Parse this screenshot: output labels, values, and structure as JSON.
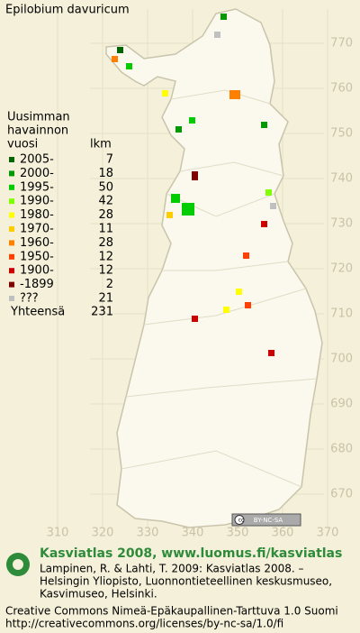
{
  "title": "Epilobium davuricum",
  "legend": {
    "header": [
      "Uusimman",
      "havainnon",
      "vuosi"
    ],
    "count_header": "lkm",
    "rows": [
      {
        "period": "2005-",
        "count": 7,
        "color": "#006400"
      },
      {
        "period": "2000-",
        "count": 18,
        "color": "#009900"
      },
      {
        "period": "1995-",
        "count": 50,
        "color": "#00cc00"
      },
      {
        "period": "1990-",
        "count": 42,
        "color": "#80ff00"
      },
      {
        "period": "1980-",
        "count": 28,
        "color": "#ffff00"
      },
      {
        "period": "1970-",
        "count": 11,
        "color": "#ffcc00"
      },
      {
        "period": "1960-",
        "count": 28,
        "color": "#ff8000"
      },
      {
        "period": "1950-",
        "count": 12,
        "color": "#ff4000"
      },
      {
        "period": "1900-",
        "count": 12,
        "color": "#cc0000"
      },
      {
        "period": "-1899",
        "count": 2,
        "color": "#800000"
      },
      {
        "period": "???",
        "count": 21,
        "color": "#c0c0c0"
      }
    ],
    "total_label": "Yhteensä",
    "total": 231
  },
  "grid_labels": {
    "north": [
      770,
      760,
      750,
      740,
      730,
      720,
      710,
      700,
      690,
      680,
      670
    ],
    "east": [
      310,
      320,
      330,
      340,
      350,
      360,
      370
    ]
  },
  "badge": {
    "cc": "cc",
    "license": "BY-NC-SA"
  },
  "footer": {
    "atlas": "Kasviatlas 2008, www.luomus.fi/kasviatlas",
    "citation": [
      "Lampinen, R. & Lahti, T. 2009: Kasviatlas 2008. –",
      "Helsingin Yliopisto, Luonnontieteellinen keskusmuseo,",
      "Kasvimuseo, Helsinki."
    ],
    "license": "Creative Commons Nimeä-Epäkaupallinen-Tarttuva 1.0 Suomi",
    "url": "http://creativecommons.org/licenses/by-nc-sa/1.0/fi"
  }
}
